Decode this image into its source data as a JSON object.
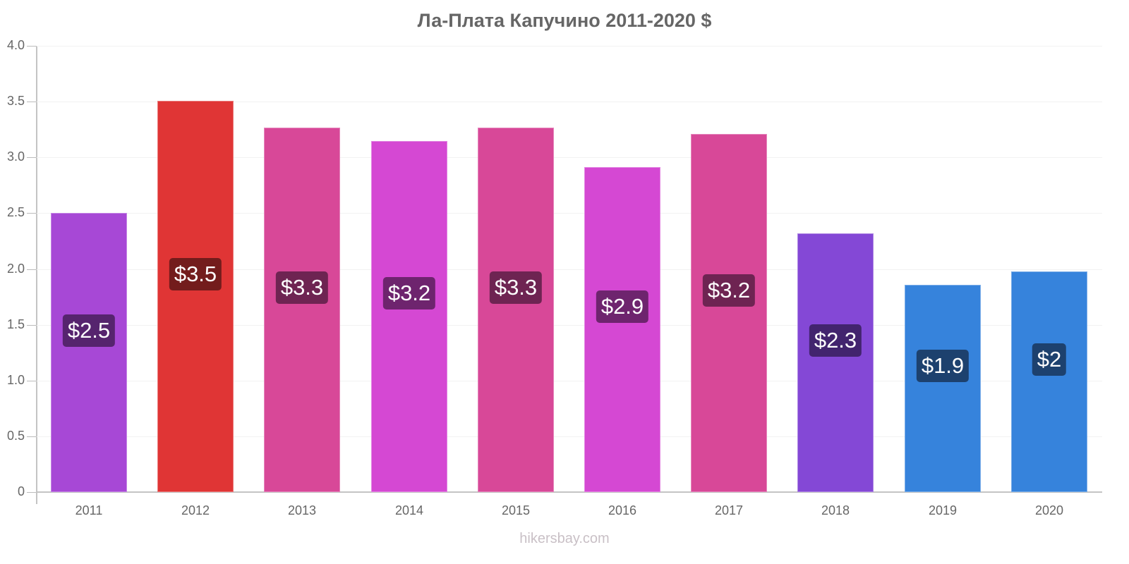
{
  "title": "Ла-Плата Капучино 2011-2020 $",
  "watermark": "hikersbay.com",
  "chart_data": {
    "type": "bar",
    "title": "Ла-Плата Капучино 2011-2020 $",
    "xlabel": "",
    "ylabel": "",
    "ylim": [
      0,
      4.0
    ],
    "grid": true,
    "legend": null,
    "y_ticks": [
      "0",
      "0.5",
      "1.0",
      "1.5",
      "2.0",
      "2.5",
      "3.0",
      "3.5",
      "4.0"
    ],
    "categories": [
      "2011",
      "2012",
      "2013",
      "2014",
      "2015",
      "2016",
      "2017",
      "2018",
      "2019",
      "2020"
    ],
    "values": [
      2.5,
      3.51,
      3.27,
      3.15,
      3.27,
      2.91,
      3.21,
      2.32,
      1.86,
      1.98
    ],
    "data_labels": [
      "$2.5",
      "$3.5",
      "$3.3",
      "$3.2",
      "$3.3",
      "$2.9",
      "$3.2",
      "$2.3",
      "$1.9",
      "$2"
    ],
    "bar_colors": [
      "#a748d6",
      "#e03535",
      "#d84898",
      "#d548d3",
      "#d84898",
      "#d548d3",
      "#d84898",
      "#8448d6",
      "#3683dc",
      "#3683dc"
    ],
    "label_colors": [
      "#56246e",
      "#731c1c",
      "#6e2452",
      "#6e246e",
      "#6e2452",
      "#6e246e",
      "#6e2452",
      "#42246e",
      "#1d416e",
      "#1d416e"
    ],
    "label_y_values": [
      1.45,
      1.95,
      1.83,
      1.78,
      1.83,
      1.66,
      1.81,
      1.36,
      1.13,
      1.19
    ]
  }
}
